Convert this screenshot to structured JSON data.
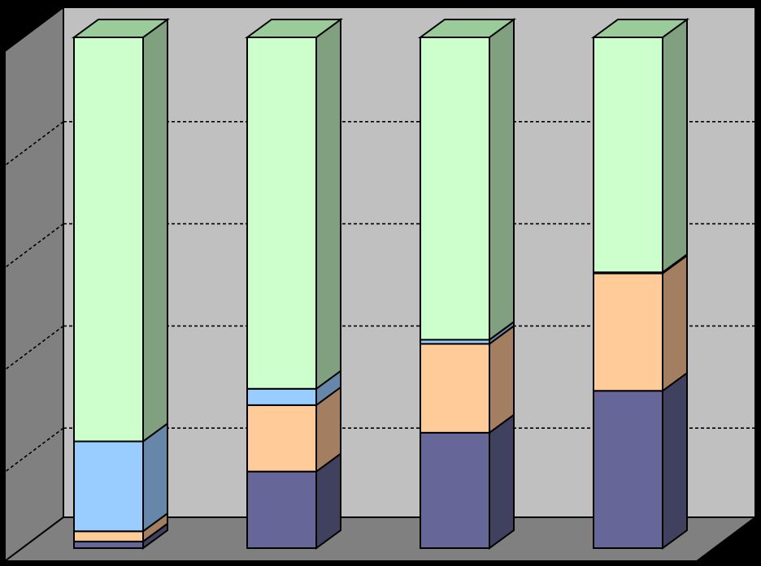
{
  "chart_data": {
    "type": "bar",
    "stacked": true,
    "three_d": true,
    "grid": true,
    "gridline_style": "dashed",
    "ylim": [
      0,
      100
    ],
    "categories": [
      "",
      "",
      "",
      ""
    ],
    "series": [
      {
        "values": [
          1.3,
          15.0,
          22.6,
          30.8
        ],
        "color": "#666699",
        "side_color": "#40405f"
      },
      {
        "values": [
          2.0,
          13.0,
          17.4,
          23.0
        ],
        "color": "#ffcc99",
        "side_color": "#a47e60"
      },
      {
        "values": [
          17.6,
          3.2,
          0.8,
          0.2
        ],
        "color": "#99ccff",
        "side_color": "#6687aa"
      },
      {
        "values": [
          79.1,
          68.8,
          59.2,
          46.0
        ],
        "color": "#ccffcc",
        "side_color": "#80a080"
      }
    ],
    "colors": {
      "background": "#000000",
      "back_wall": "#c0c0c0",
      "side_wall": "#808080",
      "floor": "#808080",
      "gridline": "#000000"
    }
  }
}
